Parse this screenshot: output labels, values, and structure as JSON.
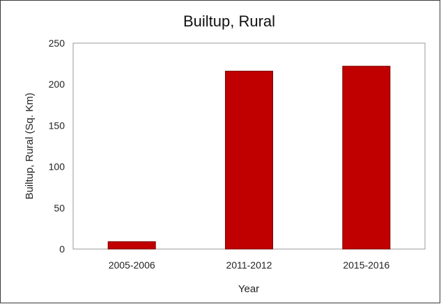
{
  "chart_data": {
    "type": "bar",
    "title": "Builtup, Rural",
    "xlabel": "Year",
    "ylabel": "Builtup, Rural (Sq. Km)",
    "categories": [
      "2005-2006",
      "2011-2012",
      "2015-2016"
    ],
    "values": [
      9,
      216,
      222
    ],
    "ylim": [
      0,
      250
    ],
    "yticks": [
      0,
      50,
      100,
      150,
      200,
      250
    ],
    "grid": false,
    "legend": "none",
    "bar_color": "#C00000"
  }
}
